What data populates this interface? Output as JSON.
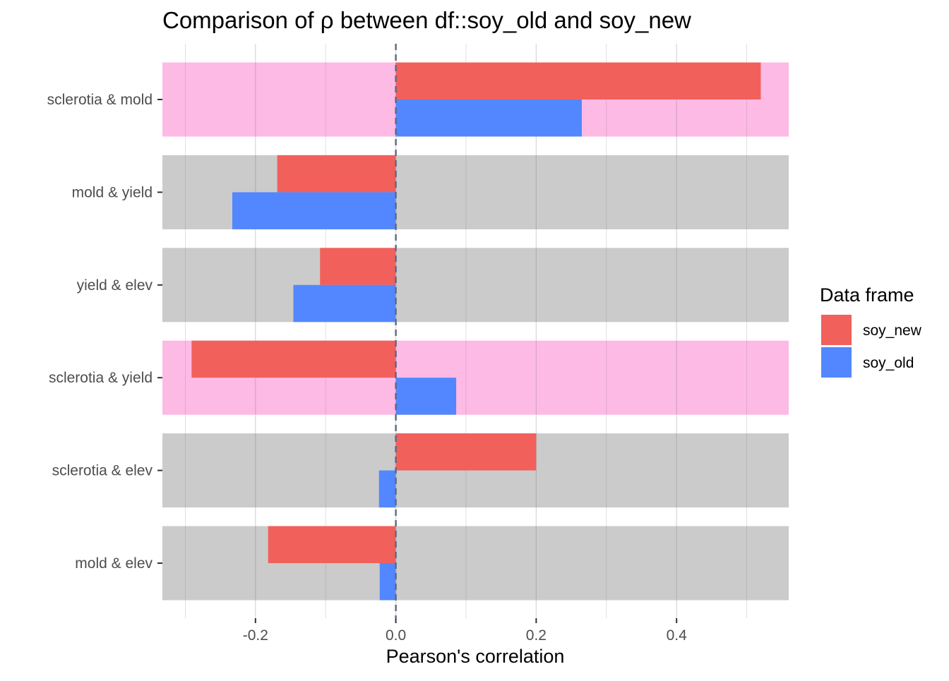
{
  "chart_data": {
    "type": "bar",
    "orientation": "horizontal",
    "title": "Comparison of ρ between df::soy_old and soy_new",
    "xlabel": "Pearson's correlation",
    "ylabel": "",
    "xlim": [
      -0.3326,
      0.5598
    ],
    "x_ticks": [
      -0.2,
      0.0,
      0.2,
      0.4
    ],
    "x_tick_labels": [
      "-0.2",
      "0.0",
      "0.2",
      "0.4"
    ],
    "reference_line": {
      "x": 0,
      "style": "dashed",
      "color": "#5a6a80"
    },
    "grid": true,
    "categories": [
      "sclerotia & mold",
      "mold & yield",
      "yield & elev",
      "sclerotia & yield",
      "sclerotia & elev",
      "mold & elev"
    ],
    "highlighted_categories": [
      "sclerotia & mold",
      "sclerotia & yield"
    ],
    "background_colors": {
      "highlight": "#fdbae5",
      "default": "#cbcbcb"
    },
    "series": [
      {
        "name": "soy_new",
        "color": "#f2605c",
        "values": [
          0.52,
          -0.169,
          -0.108,
          -0.291,
          0.2,
          -0.182
        ]
      },
      {
        "name": "soy_old",
        "color": "#5287ff",
        "values": [
          0.265,
          -0.233,
          -0.146,
          0.086,
          -0.024,
          -0.023
        ]
      }
    ],
    "legend": {
      "title": "Data frame",
      "position": "right",
      "entries": [
        "soy_new",
        "soy_old"
      ]
    }
  }
}
